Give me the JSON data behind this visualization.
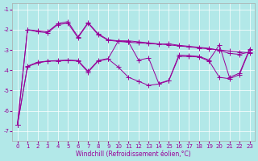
{
  "xlabel": "Windchill (Refroidissement éolien,°C)",
  "background_color": "#b2e8e8",
  "line_color": "#990099",
  "grid_color": "#ffffff",
  "xlim": [
    -0.5,
    23.5
  ],
  "ylim": [
    -7.5,
    -0.7
  ],
  "yticks": [
    -7,
    -6,
    -5,
    -4,
    -3,
    -2,
    -1
  ],
  "xticks": [
    0,
    1,
    2,
    3,
    4,
    5,
    6,
    7,
    8,
    9,
    10,
    11,
    12,
    13,
    14,
    15,
    16,
    17,
    18,
    19,
    20,
    21,
    22,
    23
  ],
  "x": [
    0,
    1,
    2,
    3,
    4,
    5,
    6,
    7,
    8,
    9,
    10,
    11,
    12,
    13,
    14,
    15,
    16,
    17,
    18,
    19,
    20,
    21,
    22,
    23
  ],
  "line1": [
    -6.7,
    -2.0,
    -2.05,
    -2.1,
    -1.7,
    -1.6,
    -2.35,
    -1.65,
    -2.2,
    -2.5,
    -2.55,
    -2.55,
    -2.6,
    -2.65,
    -2.7,
    -2.75,
    -2.8,
    -2.85,
    -2.9,
    -2.95,
    -3.0,
    -3.05,
    -3.1,
    -3.15
  ],
  "line2": [
    -6.7,
    -2.0,
    -2.1,
    -2.15,
    -1.75,
    -1.68,
    -2.4,
    -1.68,
    -2.25,
    -2.52,
    -2.58,
    -2.62,
    -2.65,
    -2.68,
    -2.72,
    -2.7,
    -2.77,
    -2.82,
    -2.87,
    -2.92,
    -3.02,
    -3.17,
    -3.22,
    -3.1
  ],
  "line3": [
    -6.7,
    -3.8,
    -3.6,
    -3.55,
    -3.52,
    -3.5,
    -3.52,
    -4.05,
    -3.52,
    -3.42,
    -2.55,
    -2.6,
    -3.5,
    -3.4,
    -4.65,
    -4.5,
    -3.25,
    -3.28,
    -3.32,
    -3.5,
    -2.75,
    -4.35,
    -4.15,
    -2.95
  ],
  "line4": [
    -6.7,
    -3.82,
    -3.65,
    -3.55,
    -3.55,
    -3.52,
    -3.55,
    -4.1,
    -3.55,
    -3.45,
    -3.85,
    -4.35,
    -4.55,
    -4.75,
    -4.68,
    -4.52,
    -3.32,
    -3.32,
    -3.35,
    -3.55,
    -4.35,
    -4.42,
    -4.22,
    -3.0
  ],
  "marker": "+",
  "markersize": 4,
  "linewidth": 0.7,
  "tick_fontsize": 5.0,
  "xlabel_fontsize": 5.5
}
